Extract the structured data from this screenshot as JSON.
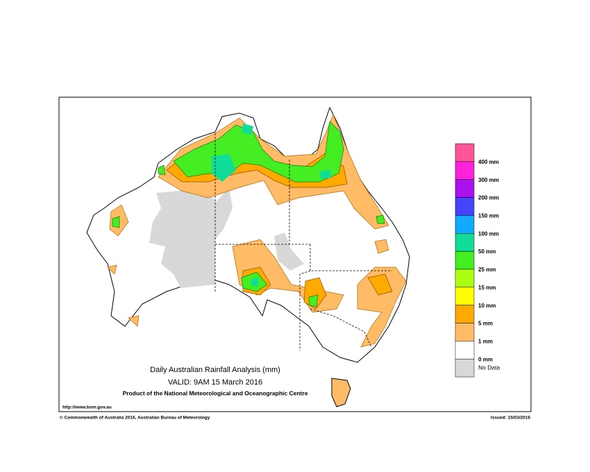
{
  "map": {
    "title": "Daily Australian Rainfall Analysis (mm)",
    "valid": "VALID: 9AM 15 March 2016",
    "product": "Product of the National Meteorological and Oceanographic Centre",
    "url": "http://www.bom.gov.au",
    "copyright": "© Commonwealth of Australia 2016, Australian Bureau of Meteorology",
    "issued": "Issued: 15/03/2016",
    "legend": {
      "colors": [
        "#ff5599",
        "#ff22dd",
        "#aa11ee",
        "#4444ff",
        "#11aaff",
        "#11dd99",
        "#44ee22",
        "#aaff11",
        "#ffff00",
        "#ffaa00",
        "#ffbb66",
        "#ffffff",
        "#d8d8d8"
      ],
      "labels": [
        "400 mm",
        "300 mm",
        "200 mm",
        "150 mm",
        "100 mm",
        "50 mm",
        "25 mm",
        "15 mm",
        "10 mm",
        "5 mm",
        "1 mm",
        "0 mm"
      ],
      "no_data": "No Data"
    }
  }
}
